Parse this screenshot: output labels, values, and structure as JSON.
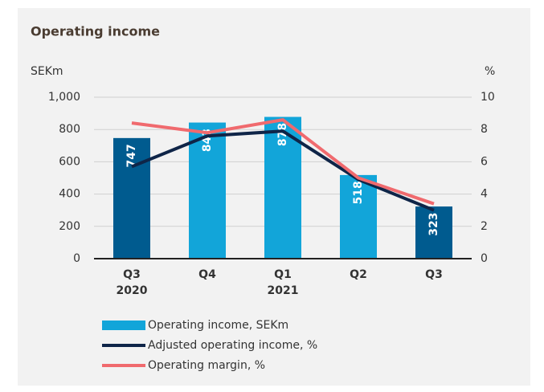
{
  "chart_data": {
    "type": "bar-line",
    "title": "Operating income",
    "y_label": "SEKm",
    "y2_label": "%",
    "categories": [
      [
        "Q3",
        "2020"
      ],
      [
        "Q4"
      ],
      [
        "Q1",
        "2021"
      ],
      [
        "Q2"
      ],
      [
        "Q3"
      ]
    ],
    "values": [
      747,
      843,
      878,
      518,
      323
    ],
    "bar_name": "Operating income, SEKm",
    "colors": [
      "#005b8f",
      "#12a5d9",
      "#12a5d9",
      "#12a5d9",
      "#005b8f"
    ],
    "legend_color": "#12a5d9",
    "series": [
      {
        "name": "Adjusted operating income, %",
        "color": "#0f2548",
        "axis": "y2",
        "values": [
          5.7,
          7.6,
          7.9,
          4.9,
          3.0
        ]
      },
      {
        "name": "Operating margin, %",
        "color": "#f06a6e",
        "axis": "y2",
        "values": [
          8.4,
          7.8,
          8.6,
          5.0,
          3.4
        ]
      }
    ],
    "ylim": [
      0,
      1000
    ],
    "yticks": [
      0,
      200,
      400,
      600,
      800,
      {
        "value": 1000,
        "label": "1,000"
      }
    ],
    "y2lim": [
      0,
      10
    ],
    "y2ticks": [
      0,
      2,
      4,
      6,
      8,
      10
    ],
    "grid": true
  }
}
